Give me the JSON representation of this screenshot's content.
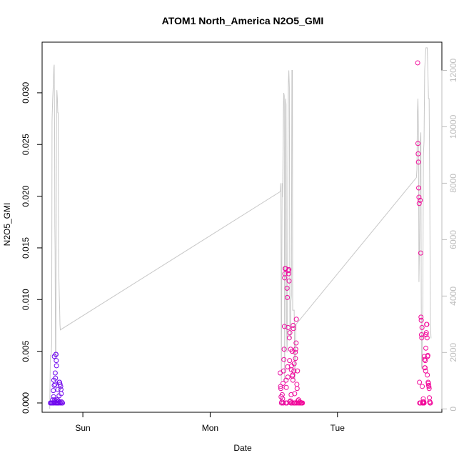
{
  "chart_data": {
    "type": "scatter",
    "title": "ATOM1 North_America N2O5_GMI",
    "xlabel": "Date",
    "ylabel": "N2O5_GMI",
    "x_unit": "days since Saturday 00:00",
    "xlim": [
      0.68,
      3.82
    ],
    "ylim": [
      -0.0009,
      0.0349
    ],
    "y2lim": [
      -120,
      13000
    ],
    "x_ticks": [
      {
        "value": 1,
        "label": "Sun"
      },
      {
        "value": 2,
        "label": "Mon"
      },
      {
        "value": 3,
        "label": "Tue"
      }
    ],
    "y_ticks": [
      {
        "value": 0.0,
        "label": "0.000"
      },
      {
        "value": 0.005,
        "label": "0.005"
      },
      {
        "value": 0.01,
        "label": "0.010"
      },
      {
        "value": 0.015,
        "label": "0.015"
      },
      {
        "value": 0.02,
        "label": "0.020"
      },
      {
        "value": 0.025,
        "label": "0.025"
      },
      {
        "value": 0.03,
        "label": "0.030"
      }
    ],
    "y2_ticks": [
      {
        "value": 0,
        "label": "0"
      },
      {
        "value": 2000,
        "label": "2000"
      },
      {
        "value": 4000,
        "label": "4000"
      },
      {
        "value": 6000,
        "label": "6000"
      },
      {
        "value": 8000,
        "label": "8000"
      },
      {
        "value": 10000,
        "label": "10000"
      },
      {
        "value": 12000,
        "label": "12000"
      }
    ],
    "grid": false,
    "colors": {
      "line": "#c8c8c8",
      "axis": "#000000",
      "y2_axis": "#bdbdbd",
      "points_start": "#6a0af2",
      "points_end": "#f20a9a"
    },
    "series": [
      {
        "kind": "points",
        "points": [
          [
            0.745,
            0.0
          ],
          [
            0.752,
            0.0
          ],
          [
            0.758,
            0.0
          ],
          [
            0.763,
            0.0003
          ],
          [
            0.765,
            0.0
          ],
          [
            0.768,
            0.0012
          ],
          [
            0.77,
            0.0006
          ],
          [
            0.772,
            0.0022
          ],
          [
            0.773,
            0.0
          ],
          [
            0.775,
            0.0017
          ],
          [
            0.776,
            0.0045
          ],
          [
            0.778,
            0.0001
          ],
          [
            0.779,
            0.0003
          ],
          [
            0.781,
            0.0018
          ],
          [
            0.783,
            0.0029
          ],
          [
            0.785,
            0.0024
          ],
          [
            0.786,
            0.0
          ],
          [
            0.788,
            0.0047
          ],
          [
            0.789,
            0.0047
          ],
          [
            0.791,
            0.0041
          ],
          [
            0.793,
            0.0036
          ],
          [
            0.795,
            0.0
          ],
          [
            0.797,
            0.0001
          ],
          [
            0.799,
            0.0003
          ],
          [
            0.801,
            0.0
          ],
          [
            0.804,
            0.0013
          ],
          [
            0.806,
            0.0
          ],
          [
            0.808,
            0.0002
          ],
          [
            0.81,
            0.0
          ],
          [
            0.813,
            0.0007
          ],
          [
            0.815,
            0.002
          ],
          [
            0.817,
            0.002
          ],
          [
            0.819,
            0.0001
          ],
          [
            0.821,
            0.0018
          ],
          [
            0.823,
            0.0
          ],
          [
            0.826,
            0.0016
          ],
          [
            0.828,
            0.0013
          ],
          [
            0.83,
            0.0009
          ],
          [
            0.833,
            0.0001
          ],
          [
            0.836,
            0.0
          ],
          [
            0.84,
            0.0
          ],
          [
            2.55,
            0.0029
          ],
          [
            2.553,
            0.0016
          ],
          [
            2.555,
            0.0014
          ],
          [
            2.557,
            0.0006
          ],
          [
            2.56,
            0.0
          ],
          [
            2.563,
            0.0001
          ],
          [
            2.566,
            0.0008
          ],
          [
            2.569,
            0.0004
          ],
          [
            2.572,
            0.0019
          ],
          [
            2.574,
            0.0
          ],
          [
            2.577,
            0.0031
          ],
          [
            2.579,
            0.0042
          ],
          [
            2.581,
            0.0052
          ],
          [
            2.583,
            0.0074
          ],
          [
            2.585,
            0.0121
          ],
          [
            2.587,
            0.0125
          ],
          [
            2.589,
            0.013
          ],
          [
            2.59,
            0.013
          ],
          [
            2.592,
            0.013
          ],
          [
            2.594,
            0.0
          ],
          [
            2.596,
            0.0022
          ],
          [
            2.598,
            0.0015
          ],
          [
            2.6,
            0.0
          ],
          [
            2.602,
            0.0
          ],
          [
            2.604,
            0.0111
          ],
          [
            2.606,
            0.0102
          ],
          [
            2.608,
            0.0035
          ],
          [
            2.61,
            0.0025
          ],
          [
            2.612,
            0.0073
          ],
          [
            2.614,
            0.0128
          ],
          [
            2.616,
            0.0125
          ],
          [
            2.618,
            0.0129
          ],
          [
            2.62,
            0.0118
          ],
          [
            2.622,
            0.0063
          ],
          [
            2.624,
            0.0041
          ],
          [
            2.626,
            0.0068
          ],
          [
            2.628,
            0.0001
          ],
          [
            2.63,
            0.0002
          ],
          [
            2.632,
            0.0052
          ],
          [
            2.634,
            0.0
          ],
          [
            2.636,
            0.0008
          ],
          [
            2.638,
            0.0032
          ],
          [
            2.64,
            0.0036
          ],
          [
            2.642,
            0.0
          ],
          [
            2.644,
            0.005
          ],
          [
            2.646,
            0.0026
          ],
          [
            2.648,
            0.0027
          ],
          [
            2.65,
            0.0022
          ],
          [
            2.652,
            0.0075
          ],
          [
            2.654,
            0.0072
          ],
          [
            2.656,
            0.0
          ],
          [
            2.658,
            0.0031
          ],
          [
            2.66,
            0.0038
          ],
          [
            2.662,
            0.0
          ],
          [
            2.664,
            0.0009
          ],
          [
            2.666,
            0.0
          ],
          [
            2.668,
            0.0049
          ],
          [
            2.67,
            0.0043
          ],
          [
            2.672,
            0.0052
          ],
          [
            2.675,
            0.0058
          ],
          [
            2.677,
            0.0081
          ],
          [
            2.679,
            0.0
          ],
          [
            2.681,
            0.0018
          ],
          [
            2.683,
            0.0014
          ],
          [
            2.686,
            0.0031
          ],
          [
            2.689,
            0.0002
          ],
          [
            2.692,
            0.0
          ],
          [
            2.695,
            0.0003
          ],
          [
            2.7,
            0.0
          ],
          [
            2.705,
            0.0001
          ],
          [
            2.71,
            0.0
          ],
          [
            2.715,
            0.0
          ],
          [
            2.72,
            0.0
          ],
          [
            2.725,
            0.0
          ],
          [
            3.63,
            0.0329
          ],
          [
            3.632,
            0.0251
          ],
          [
            3.634,
            0.0241
          ],
          [
            3.636,
            0.0233
          ],
          [
            3.638,
            0.0208
          ],
          [
            3.64,
            0.0199
          ],
          [
            3.642,
            0.0193
          ],
          [
            3.644,
            0.002
          ],
          [
            3.646,
            0.0
          ],
          [
            3.648,
            0.0
          ],
          [
            3.65,
            0.0196
          ],
          [
            3.652,
            0.0
          ],
          [
            3.654,
            0.0145
          ],
          [
            3.656,
            0.0083
          ],
          [
            3.658,
            0.008
          ],
          [
            3.66,
            0.0066
          ],
          [
            3.662,
            0.0063
          ],
          [
            3.664,
            0.0073
          ],
          [
            3.666,
            0.0016
          ],
          [
            3.668,
            0.0
          ],
          [
            3.67,
            0.0001
          ],
          [
            3.672,
            0.0
          ],
          [
            3.674,
            0.0004
          ],
          [
            3.676,
            0.0
          ],
          [
            3.678,
            0.0001
          ],
          [
            3.68,
            0.0
          ],
          [
            3.682,
            0.0045
          ],
          [
            3.684,
            0.0042
          ],
          [
            3.686,
            0.0034
          ],
          [
            3.688,
            0.0034
          ],
          [
            3.69,
            0.0041
          ],
          [
            3.692,
            0.0031
          ],
          [
            3.694,
            0.0053
          ],
          [
            3.696,
            0.0066
          ],
          [
            3.698,
            0.0068
          ],
          [
            3.7,
            0.0076
          ],
          [
            3.702,
            0.0076
          ],
          [
            3.704,
            0.0063
          ],
          [
            3.706,
            0.0027
          ],
          [
            3.708,
            0.0045
          ],
          [
            3.71,
            0.0046
          ],
          [
            3.712,
            0.002
          ],
          [
            3.714,
            0.0019
          ],
          [
            3.716,
            0.0017
          ],
          [
            3.718,
            0.0016
          ],
          [
            3.72,
            0.0014
          ],
          [
            3.722,
            0.0005
          ],
          [
            3.724,
            0.0001
          ],
          [
            3.726,
            0.0001
          ],
          [
            3.728,
            0.0
          ],
          [
            3.73,
            0.0
          ]
        ]
      },
      {
        "kind": "line",
        "axis": "y2",
        "points": [
          [
            0.74,
            0
          ],
          [
            0.745,
            1900
          ],
          [
            0.75,
            1900
          ],
          [
            0.752,
            2000
          ],
          [
            0.755,
            2300
          ],
          [
            0.758,
            10200
          ],
          [
            0.763,
            11000
          ],
          [
            0.768,
            11500
          ],
          [
            0.772,
            12100
          ],
          [
            0.775,
            12200
          ],
          [
            0.778,
            10000
          ],
          [
            0.78,
            6500
          ],
          [
            0.782,
            5600
          ],
          [
            0.785,
            1900
          ],
          [
            0.788,
            1800
          ],
          [
            0.79,
            6000
          ],
          [
            0.793,
            10200
          ],
          [
            0.796,
            11300
          ],
          [
            0.8,
            11000
          ],
          [
            0.803,
            10500
          ],
          [
            0.806,
            10500
          ],
          [
            0.81,
            5000
          ],
          [
            0.815,
            4000
          ],
          [
            0.818,
            3500
          ],
          [
            0.82,
            3000
          ],
          [
            0.823,
            2800
          ],
          [
            2.55,
            7700
          ],
          [
            2.553,
            8000
          ],
          [
            2.556,
            7000
          ],
          [
            2.559,
            1000
          ],
          [
            2.562,
            3800
          ],
          [
            2.565,
            8000
          ],
          [
            2.568,
            7500
          ],
          [
            2.57,
            8000
          ],
          [
            2.572,
            9000
          ],
          [
            2.575,
            10500
          ],
          [
            2.578,
            11200
          ],
          [
            2.582,
            11100
          ],
          [
            2.585,
            1000
          ],
          [
            2.588,
            4500
          ],
          [
            2.592,
            11000
          ],
          [
            2.596,
            10800
          ],
          [
            2.6,
            3000
          ],
          [
            2.604,
            2000
          ],
          [
            2.607,
            3000
          ],
          [
            2.61,
            8500
          ],
          [
            2.614,
            11500
          ],
          [
            2.618,
            12000
          ],
          [
            2.622,
            11400
          ],
          [
            2.626,
            3000
          ],
          [
            2.63,
            2500
          ],
          [
            2.634,
            3800
          ],
          [
            2.638,
            4000
          ],
          [
            2.642,
            12000
          ],
          [
            2.646,
            12000
          ],
          [
            2.648,
            3500
          ],
          [
            2.65,
            3500
          ],
          [
            2.655,
            3500
          ],
          [
            2.66,
            3500
          ],
          [
            2.665,
            1000
          ],
          [
            2.67,
            2200
          ],
          [
            2.675,
            3000
          ],
          [
            3.62,
            8200
          ],
          [
            3.624,
            8500
          ],
          [
            3.628,
            10500
          ],
          [
            3.632,
            11000
          ],
          [
            3.636,
            10000
          ],
          [
            3.64,
            4500
          ],
          [
            3.645,
            6000
          ],
          [
            3.65,
            9500
          ],
          [
            3.655,
            9800
          ],
          [
            3.658,
            4000
          ],
          [
            3.66,
            1500
          ],
          [
            3.665,
            1400
          ],
          [
            3.67,
            3500
          ],
          [
            3.675,
            9000
          ],
          [
            3.68,
            9500
          ],
          [
            3.685,
            12000
          ],
          [
            3.69,
            12500
          ],
          [
            3.695,
            12800
          ],
          [
            3.7,
            12800
          ],
          [
            3.705,
            12800
          ],
          [
            3.71,
            12000
          ],
          [
            3.715,
            11000
          ],
          [
            3.72,
            11000
          ],
          [
            3.725,
            7500
          ],
          [
            3.73,
            3000
          ],
          [
            3.735,
            2500
          ]
        ]
      }
    ]
  }
}
